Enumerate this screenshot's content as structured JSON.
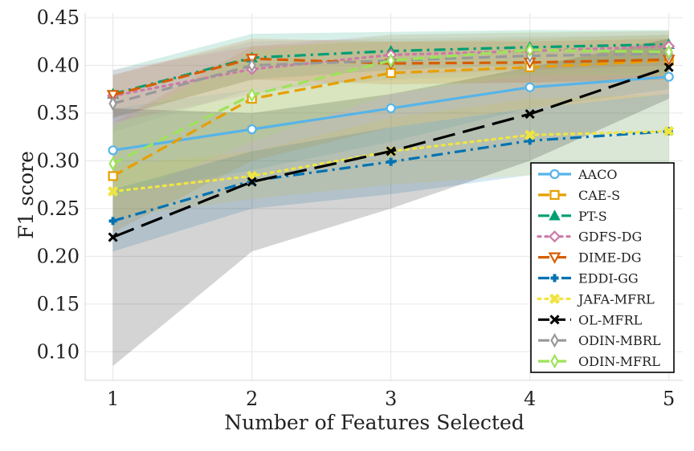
{
  "chart_data": {
    "type": "line",
    "title": "",
    "xlabel": "Number of Features Selected",
    "ylabel": "F1 score",
    "x": [
      1,
      2,
      3,
      4,
      5
    ],
    "xlim": [
      0.8,
      5.1
    ],
    "ylim": [
      0.07,
      0.455
    ],
    "xticks": [
      1,
      2,
      3,
      4,
      5
    ],
    "yticks": [
      "0.10",
      "0.15",
      "0.20",
      "0.25",
      "0.30",
      "0.35",
      "0.40",
      "0.45"
    ],
    "grid": true,
    "legend_position": "lower-right",
    "series": [
      {
        "name": "AACO",
        "color": "#56b4e9",
        "dash": "solid",
        "marker": "circle",
        "values": [
          0.311,
          0.333,
          0.355,
          0.377,
          0.388
        ],
        "lower": [
          0.265,
          0.29,
          0.32,
          0.355,
          0.375
        ],
        "upper": [
          0.355,
          0.375,
          0.39,
          0.4,
          0.405
        ]
      },
      {
        "name": "CAE-S",
        "color": "#e69f00",
        "dash": "dash",
        "marker": "square",
        "values": [
          0.284,
          0.365,
          0.392,
          0.398,
          0.405
        ],
        "lower": [
          0.225,
          0.3,
          0.335,
          0.355,
          0.37
        ],
        "upper": [
          0.34,
          0.42,
          0.425,
          0.428,
          0.432
        ]
      },
      {
        "name": "PT-S",
        "color": "#009e73",
        "dash": "dashdot",
        "marker": "triangle-up",
        "values": [
          0.37,
          0.408,
          0.415,
          0.419,
          0.422
        ],
        "lower": [
          0.345,
          0.385,
          0.395,
          0.4,
          0.405
        ],
        "upper": [
          0.395,
          0.433,
          0.435,
          0.437,
          0.437
        ]
      },
      {
        "name": "GDFS-DG",
        "color": "#cc79a7",
        "dash": "dot",
        "marker": "diamond",
        "values": [
          0.368,
          0.396,
          0.411,
          0.415,
          0.42
        ],
        "lower": [
          0.34,
          0.37,
          0.39,
          0.395,
          0.4
        ],
        "upper": [
          0.395,
          0.42,
          0.432,
          0.434,
          0.436
        ]
      },
      {
        "name": "DIME-DG",
        "color": "#d55e00",
        "dash": "dash",
        "marker": "triangle-down",
        "values": [
          0.369,
          0.407,
          0.402,
          0.403,
          0.406
        ],
        "lower": [
          0.345,
          0.385,
          0.38,
          0.382,
          0.385
        ],
        "upper": [
          0.39,
          0.428,
          0.425,
          0.425,
          0.428
        ]
      },
      {
        "name": "EDDI-GG",
        "color": "#0072b2",
        "dash": "dashdot",
        "marker": "plus",
        "values": [
          0.237,
          0.279,
          0.299,
          0.321,
          0.331
        ],
        "lower": [
          0.205,
          0.25,
          0.265,
          0.285,
          0.29
        ],
        "upper": [
          0.27,
          0.31,
          0.335,
          0.355,
          0.37
        ]
      },
      {
        "name": "JAFA-MFRL",
        "color": "#f0e442",
        "dash": "dot",
        "marker": "x-thick",
        "values": [
          0.268,
          0.284,
          0.31,
          0.327,
          0.331
        ],
        "lower": [
          0.24,
          0.26,
          0.275,
          0.285,
          0.29
        ],
        "upper": [
          0.295,
          0.31,
          0.345,
          0.365,
          0.37
        ]
      },
      {
        "name": "OL-MFRL",
        "color": "#000000",
        "dash": "longdash",
        "marker": "x",
        "values": [
          0.22,
          0.278,
          0.31,
          0.349,
          0.398
        ],
        "lower": [
          0.085,
          0.205,
          0.25,
          0.3,
          0.365
        ],
        "upper": [
          0.355,
          0.35,
          0.37,
          0.398,
          0.428
        ]
      },
      {
        "name": "ODIN-MBRL",
        "color": "#999999",
        "dash": "dash",
        "marker": "thin-diamond",
        "values": [
          0.36,
          0.4,
          0.405,
          0.41,
          0.412
        ],
        "lower": [
          0.33,
          0.375,
          0.385,
          0.39,
          0.392
        ],
        "upper": [
          0.39,
          0.425,
          0.428,
          0.43,
          0.432
        ]
      },
      {
        "name": "ODIN-MFRL",
        "color": "#9ee35a",
        "dash": "dash",
        "marker": "thin-diamond",
        "values": [
          0.297,
          0.369,
          0.405,
          0.416,
          0.414
        ],
        "lower": [
          0.26,
          0.32,
          0.37,
          0.39,
          0.39
        ],
        "upper": [
          0.335,
          0.415,
          0.432,
          0.435,
          0.436
        ]
      }
    ]
  }
}
